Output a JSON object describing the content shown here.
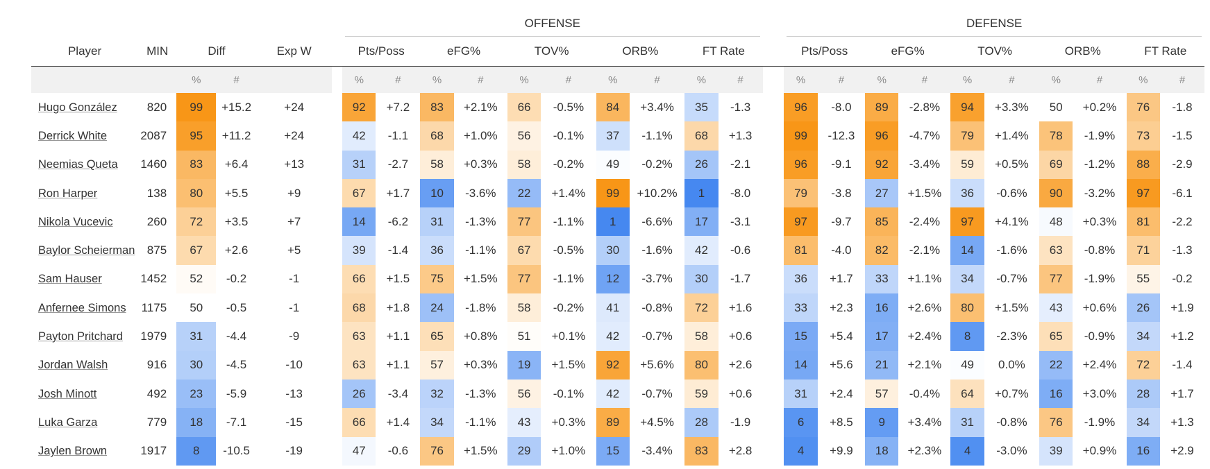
{
  "groups": {
    "offense": "OFFENSE",
    "defense": "DEFENSE"
  },
  "columns": {
    "player": "Player",
    "min": "MIN",
    "diff": "Diff",
    "expw": "Exp W",
    "stats": [
      "Pts/Poss",
      "eFG%",
      "TOV%",
      "ORB%",
      "FT Rate"
    ]
  },
  "subheaders": {
    "pct": "%",
    "num": "#"
  },
  "colors": {
    "orange_strong": "#f89a1c",
    "orange_light": "#fdeed8",
    "blue_strong": "#4286f0",
    "blue_light": "#e8f0fd"
  },
  "rows": [
    {
      "player": "Hugo González",
      "min": "820",
      "diff_pct": "99",
      "diff_num": "+15.2",
      "expw": "+24",
      "off": [
        [
          "92",
          "+7.2"
        ],
        [
          "83",
          "+2.1%"
        ],
        [
          "66",
          "-0.5%"
        ],
        [
          "84",
          "+3.4%"
        ],
        [
          "35",
          "-1.3"
        ]
      ],
      "def": [
        [
          "96",
          "-8.0"
        ],
        [
          "89",
          "-2.8%"
        ],
        [
          "94",
          "+3.3%"
        ],
        [
          "50",
          "+0.2%"
        ],
        [
          "76",
          "-1.8"
        ]
      ]
    },
    {
      "player": "Derrick White",
      "min": "2087",
      "diff_pct": "95",
      "diff_num": "+11.2",
      "expw": "+24",
      "off": [
        [
          "42",
          "-1.1"
        ],
        [
          "68",
          "+1.0%"
        ],
        [
          "56",
          "-0.1%"
        ],
        [
          "37",
          "-1.1%"
        ],
        [
          "68",
          "+1.3"
        ]
      ],
      "def": [
        [
          "99",
          "-12.3"
        ],
        [
          "96",
          "-4.7%"
        ],
        [
          "79",
          "+1.4%"
        ],
        [
          "78",
          "-1.9%"
        ],
        [
          "73",
          "-1.5"
        ]
      ]
    },
    {
      "player": "Neemias Queta",
      "min": "1460",
      "diff_pct": "83",
      "diff_num": "+6.4",
      "expw": "+13",
      "off": [
        [
          "31",
          "-2.7"
        ],
        [
          "58",
          "+0.3%"
        ],
        [
          "58",
          "-0.2%"
        ],
        [
          "49",
          "-0.2%"
        ],
        [
          "26",
          "-2.1"
        ]
      ],
      "def": [
        [
          "96",
          "-9.1"
        ],
        [
          "92",
          "-3.4%"
        ],
        [
          "59",
          "+0.5%"
        ],
        [
          "69",
          "-1.2%"
        ],
        [
          "88",
          "-2.9"
        ]
      ]
    },
    {
      "player": "Ron Harper",
      "min": "138",
      "diff_pct": "80",
      "diff_num": "+5.5",
      "expw": "+9",
      "off": [
        [
          "67",
          "+1.7"
        ],
        [
          "10",
          "-3.6%"
        ],
        [
          "22",
          "+1.4%"
        ],
        [
          "99",
          "+10.2%"
        ],
        [
          "1",
          "-8.0"
        ]
      ],
      "def": [
        [
          "79",
          "-3.8"
        ],
        [
          "27",
          "+1.5%"
        ],
        [
          "36",
          "-0.6%"
        ],
        [
          "90",
          "-3.2%"
        ],
        [
          "97",
          "-6.1"
        ]
      ]
    },
    {
      "player": "Nikola Vucevic",
      "min": "260",
      "diff_pct": "72",
      "diff_num": "+3.5",
      "expw": "+7",
      "off": [
        [
          "14",
          "-6.2"
        ],
        [
          "31",
          "-1.3%"
        ],
        [
          "77",
          "-1.1%"
        ],
        [
          "1",
          "-6.6%"
        ],
        [
          "17",
          "-3.1"
        ]
      ],
      "def": [
        [
          "97",
          "-9.7"
        ],
        [
          "85",
          "-2.4%"
        ],
        [
          "97",
          "+4.1%"
        ],
        [
          "48",
          "+0.3%"
        ],
        [
          "81",
          "-2.2"
        ]
      ]
    },
    {
      "player": "Baylor Scheierman",
      "min": "875",
      "diff_pct": "67",
      "diff_num": "+2.6",
      "expw": "+5",
      "off": [
        [
          "39",
          "-1.4"
        ],
        [
          "36",
          "-1.1%"
        ],
        [
          "67",
          "-0.5%"
        ],
        [
          "30",
          "-1.6%"
        ],
        [
          "42",
          "-0.6"
        ]
      ],
      "def": [
        [
          "81",
          "-4.0"
        ],
        [
          "82",
          "-2.1%"
        ],
        [
          "14",
          "-1.6%"
        ],
        [
          "63",
          "-0.8%"
        ],
        [
          "71",
          "-1.3"
        ]
      ]
    },
    {
      "player": "Sam Hauser",
      "min": "1452",
      "diff_pct": "52",
      "diff_num": "-0.2",
      "expw": "-1",
      "off": [
        [
          "66",
          "+1.5"
        ],
        [
          "75",
          "+1.5%"
        ],
        [
          "77",
          "-1.1%"
        ],
        [
          "12",
          "-3.7%"
        ],
        [
          "30",
          "-1.7"
        ]
      ],
      "def": [
        [
          "36",
          "+1.7"
        ],
        [
          "33",
          "+1.1%"
        ],
        [
          "34",
          "-0.7%"
        ],
        [
          "77",
          "-1.9%"
        ],
        [
          "55",
          "-0.2"
        ]
      ]
    },
    {
      "player": "Anfernee Simons",
      "min": "1175",
      "diff_pct": "50",
      "diff_num": "-0.5",
      "expw": "-1",
      "off": [
        [
          "68",
          "+1.8"
        ],
        [
          "24",
          "-1.8%"
        ],
        [
          "58",
          "-0.2%"
        ],
        [
          "41",
          "-0.8%"
        ],
        [
          "72",
          "+1.6"
        ]
      ],
      "def": [
        [
          "33",
          "+2.3"
        ],
        [
          "16",
          "+2.6%"
        ],
        [
          "80",
          "+1.5%"
        ],
        [
          "43",
          "+0.6%"
        ],
        [
          "26",
          "+1.9"
        ]
      ]
    },
    {
      "player": "Payton Pritchard",
      "min": "1979",
      "diff_pct": "31",
      "diff_num": "-4.4",
      "expw": "-9",
      "off": [
        [
          "63",
          "+1.1"
        ],
        [
          "65",
          "+0.8%"
        ],
        [
          "51",
          "+0.1%"
        ],
        [
          "42",
          "-0.7%"
        ],
        [
          "58",
          "+0.6"
        ]
      ],
      "def": [
        [
          "15",
          "+5.4"
        ],
        [
          "17",
          "+2.4%"
        ],
        [
          "8",
          "-2.3%"
        ],
        [
          "65",
          "-0.9%"
        ],
        [
          "34",
          "+1.2"
        ]
      ]
    },
    {
      "player": "Jordan Walsh",
      "min": "916",
      "diff_pct": "30",
      "diff_num": "-4.5",
      "expw": "-10",
      "off": [
        [
          "63",
          "+1.1"
        ],
        [
          "57",
          "+0.3%"
        ],
        [
          "19",
          "+1.5%"
        ],
        [
          "92",
          "+5.6%"
        ],
        [
          "80",
          "+2.6"
        ]
      ],
      "def": [
        [
          "14",
          "+5.6"
        ],
        [
          "21",
          "+2.1%"
        ],
        [
          "49",
          "0.0%"
        ],
        [
          "22",
          "+2.4%"
        ],
        [
          "72",
          "-1.4"
        ]
      ]
    },
    {
      "player": "Josh Minott",
      "min": "492",
      "diff_pct": "23",
      "diff_num": "-5.9",
      "expw": "-13",
      "off": [
        [
          "26",
          "-3.4"
        ],
        [
          "32",
          "-1.3%"
        ],
        [
          "56",
          "-0.1%"
        ],
        [
          "42",
          "-0.7%"
        ],
        [
          "59",
          "+0.6"
        ]
      ],
      "def": [
        [
          "31",
          "+2.4"
        ],
        [
          "57",
          "-0.4%"
        ],
        [
          "64",
          "+0.7%"
        ],
        [
          "16",
          "+3.0%"
        ],
        [
          "28",
          "+1.7"
        ]
      ]
    },
    {
      "player": "Luka Garza",
      "min": "779",
      "diff_pct": "18",
      "diff_num": "-7.1",
      "expw": "-15",
      "off": [
        [
          "66",
          "+1.4"
        ],
        [
          "34",
          "-1.1%"
        ],
        [
          "43",
          "+0.3%"
        ],
        [
          "89",
          "+4.5%"
        ],
        [
          "28",
          "-1.9"
        ]
      ],
      "def": [
        [
          "6",
          "+8.5"
        ],
        [
          "9",
          "+3.4%"
        ],
        [
          "31",
          "-0.8%"
        ],
        [
          "76",
          "-1.9%"
        ],
        [
          "34",
          "+1.3"
        ]
      ]
    },
    {
      "player": "Jaylen Brown",
      "min": "1917",
      "diff_pct": "8",
      "diff_num": "-10.5",
      "expw": "-19",
      "off": [
        [
          "47",
          "-0.6"
        ],
        [
          "76",
          "+1.5%"
        ],
        [
          "29",
          "+1.0%"
        ],
        [
          "15",
          "-3.4%"
        ],
        [
          "83",
          "+2.8"
        ]
      ],
      "def": [
        [
          "4",
          "+9.9"
        ],
        [
          "18",
          "+2.3%"
        ],
        [
          "4",
          "-3.0%"
        ],
        [
          "39",
          "+0.9%"
        ],
        [
          "16",
          "+2.9"
        ]
      ]
    }
  ]
}
